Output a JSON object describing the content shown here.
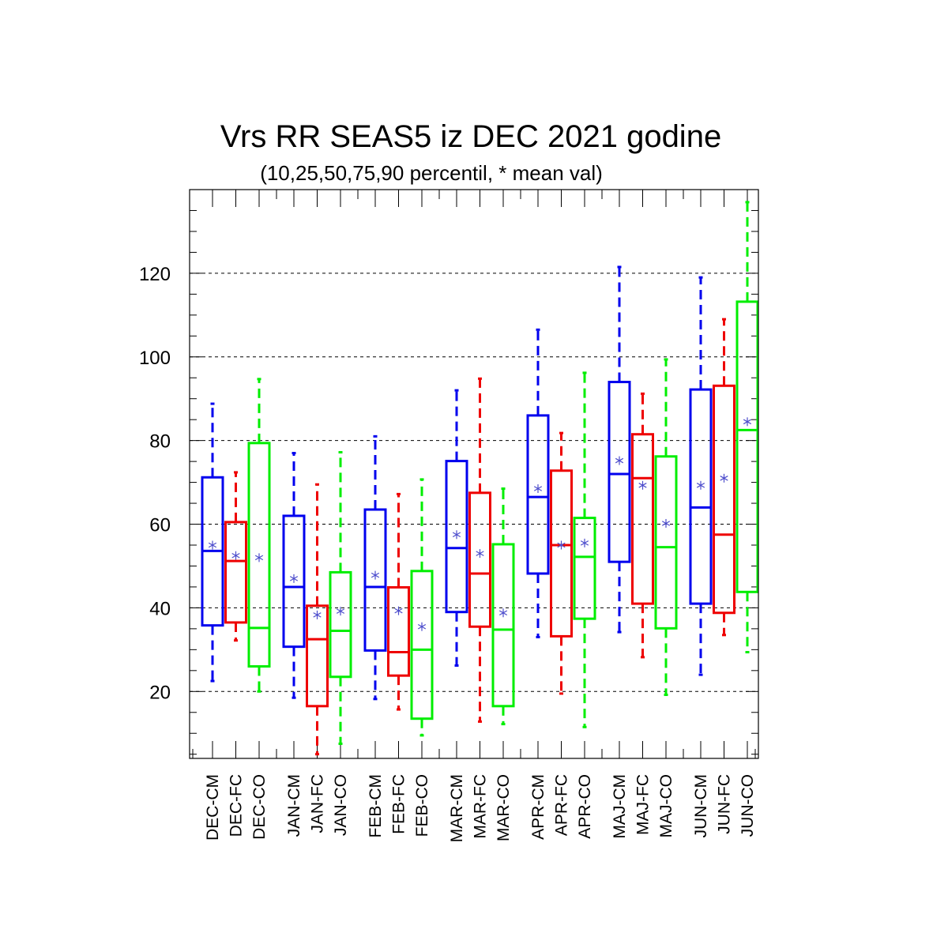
{
  "chart_data": {
    "type": "box",
    "title": "Vrs RR SEAS5 iz DEC 2021 godine",
    "subtitle": "(10,25,50,75,90 percentil, * mean val)",
    "ylim": [
      4,
      140
    ],
    "yticks": [
      20,
      40,
      60,
      80,
      100,
      120
    ],
    "grid": "horizontal dashed at major ticks",
    "colors": {
      "CM": "#0000ee",
      "FC": "#ee0000",
      "CO": "#00ee00",
      "mean_marker": "#4d4dcc"
    },
    "groups": [
      "DEC",
      "JAN",
      "FEB",
      "MAR",
      "APR",
      "MAJ",
      "JUN"
    ],
    "boxes": [
      {
        "label": "DEC-CM",
        "p10": 22.5,
        "p25": 35.8,
        "p50": 53.6,
        "p75": 71.2,
        "p90": 88.8,
        "mean": 55.0
      },
      {
        "label": "DEC-FC",
        "p10": 32.2,
        "p25": 36.5,
        "p50": 51.2,
        "p75": 60.5,
        "p90": 72.4,
        "mean": 52.5
      },
      {
        "label": "DEC-CO",
        "p10": 20.0,
        "p25": 26.0,
        "p50": 35.2,
        "p75": 79.4,
        "p90": 94.7,
        "mean": 52.0
      },
      {
        "label": "JAN-CM",
        "p10": 18.5,
        "p25": 30.7,
        "p50": 45.0,
        "p75": 62.0,
        "p90": 77.0,
        "mean": 47.0
      },
      {
        "label": "JAN-FC",
        "p10": 5.0,
        "p25": 16.5,
        "p50": 32.5,
        "p75": 40.5,
        "p90": 69.5,
        "mean": 38.3
      },
      {
        "label": "JAN-CO",
        "p10": 7.5,
        "p25": 23.5,
        "p50": 34.5,
        "p75": 48.5,
        "p90": 77.2,
        "mean": 39.2
      },
      {
        "label": "FEB-CM",
        "p10": 18.2,
        "p25": 29.8,
        "p50": 45.0,
        "p75": 63.5,
        "p90": 81.0,
        "mean": 47.8
      },
      {
        "label": "FEB-FC",
        "p10": 15.7,
        "p25": 23.8,
        "p50": 29.4,
        "p75": 44.9,
        "p90": 67.2,
        "mean": 39.3
      },
      {
        "label": "FEB-CO",
        "p10": 9.5,
        "p25": 13.5,
        "p50": 30.0,
        "p75": 48.8,
        "p90": 70.7,
        "mean": 35.5
      },
      {
        "label": "MAR-CM",
        "p10": 26.2,
        "p25": 39.0,
        "p50": 54.3,
        "p75": 75.1,
        "p90": 92.0,
        "mean": 57.5
      },
      {
        "label": "MAR-FC",
        "p10": 12.8,
        "p25": 35.5,
        "p50": 48.2,
        "p75": 67.5,
        "p90": 94.8,
        "mean": 53.0
      },
      {
        "label": "MAR-CO",
        "p10": 12.2,
        "p25": 16.5,
        "p50": 34.8,
        "p75": 55.2,
        "p90": 68.5,
        "mean": 38.8
      },
      {
        "label": "APR-CM",
        "p10": 33.0,
        "p25": 48.2,
        "p50": 66.5,
        "p75": 86.0,
        "p90": 106.5,
        "mean": 68.5
      },
      {
        "label": "APR-FC",
        "p10": 19.5,
        "p25": 33.2,
        "p50": 55.0,
        "p75": 72.8,
        "p90": 81.8,
        "mean": 55.0
      },
      {
        "label": "APR-CO",
        "p10": 11.5,
        "p25": 37.4,
        "p50": 52.2,
        "p75": 61.5,
        "p90": 96.2,
        "mean": 55.5
      },
      {
        "label": "MAJ-CM",
        "p10": 34.2,
        "p25": 51.0,
        "p50": 72.0,
        "p75": 94.0,
        "p90": 121.5,
        "mean": 75.2
      },
      {
        "label": "MAJ-FC",
        "p10": 28.2,
        "p25": 41.0,
        "p50": 71.0,
        "p75": 81.5,
        "p90": 91.2,
        "mean": 69.3
      },
      {
        "label": "MAJ-CO",
        "p10": 19.2,
        "p25": 35.1,
        "p50": 54.5,
        "p75": 76.2,
        "p90": 99.4,
        "mean": 60.2
      },
      {
        "label": "JUN-CM",
        "p10": 24.0,
        "p25": 41.0,
        "p50": 64.0,
        "p75": 92.2,
        "p90": 119.0,
        "mean": 69.3
      },
      {
        "label": "JUN-FC",
        "p10": 33.5,
        "p25": 38.8,
        "p50": 57.5,
        "p75": 93.1,
        "p90": 109.0,
        "mean": 71.0
      },
      {
        "label": "JUN-CO",
        "p10": 29.4,
        "p25": 43.8,
        "p50": 82.5,
        "p75": 113.2,
        "p90": 137.0,
        "mean": 84.5
      }
    ]
  }
}
